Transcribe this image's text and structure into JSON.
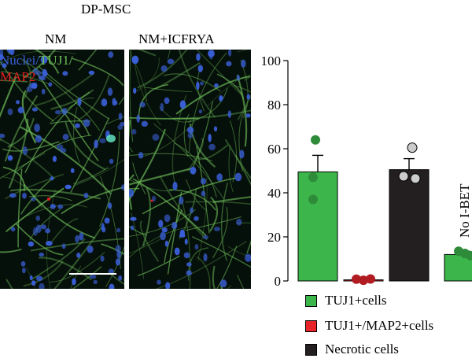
{
  "figure": {
    "title": "DP-MSC",
    "panels": [
      {
        "label": "NM"
      },
      {
        "label": "NM+ICFRYA"
      }
    ],
    "stain": {
      "nuclei": "Nuclei/",
      "tuj1": "TUJ1/",
      "map2": "MAP2",
      "colors": {
        "nuclei": "#3a5fd8",
        "tuj1": "#6fbf5a",
        "map2": "#e02020"
      }
    }
  },
  "chart_data": {
    "type": "bar",
    "ylim": [
      0,
      100
    ],
    "yticks": [
      0,
      20,
      40,
      60,
      80,
      100
    ],
    "annotation": "No I-BET",
    "bars": [
      {
        "name": "TUJ1+cells",
        "value": 49.5,
        "error": 7.5,
        "color": "#3cb54a",
        "points": [
          64,
          47,
          37
        ],
        "point_color": "#2e8b3a"
      },
      {
        "name": "TUJ1+/MAP2+cells",
        "value": 0.5,
        "error": 0,
        "color": "#e8242a",
        "points": [
          0.8,
          0.3,
          0.9
        ],
        "point_color": "#b01c22"
      },
      {
        "name": "Necrotic cells",
        "value": 50.5,
        "error": 5,
        "color": "#231f20",
        "points": [
          60.5,
          47.5,
          46.5
        ],
        "point_color": "#cccccc"
      },
      {
        "name": "No I-BET",
        "value": 12,
        "error": 1.5,
        "color": "#3cb54a",
        "points": [
          13.5,
          11.5,
          12.5
        ],
        "point_color": "#2e8b3a"
      }
    ],
    "legend": [
      {
        "label": "TUJ1+cells",
        "color": "#3cb54a"
      },
      {
        "label": "TUJ1+/MAP2+cells",
        "color": "#e8242a"
      },
      {
        "label": "Necrotic cells",
        "color": "#231f20"
      }
    ]
  }
}
